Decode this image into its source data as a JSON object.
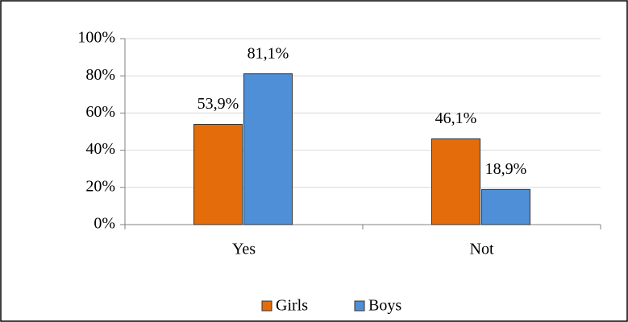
{
  "chart_data": {
    "type": "bar",
    "categories": [
      "Yes",
      "Not"
    ],
    "series": [
      {
        "name": "Girls",
        "color": "#e46c0a",
        "values": [
          53.9,
          46.1
        ],
        "value_labels": [
          "53,9%",
          "46,1%"
        ]
      },
      {
        "name": "Boys",
        "color": "#4f8fd8",
        "values": [
          81.1,
          18.9
        ],
        "value_labels": [
          "81,1%",
          "18,9%"
        ]
      }
    ],
    "ylim": [
      0,
      100
    ],
    "yticks": [
      {
        "value": 0,
        "label": "0%"
      },
      {
        "value": 20,
        "label": "20%"
      },
      {
        "value": 40,
        "label": "40%"
      },
      {
        "value": 60,
        "label": "60%"
      },
      {
        "value": 80,
        "label": "80%"
      },
      {
        "value": 100,
        "label": "100%"
      }
    ],
    "grid": true,
    "legend": "bottom"
  }
}
